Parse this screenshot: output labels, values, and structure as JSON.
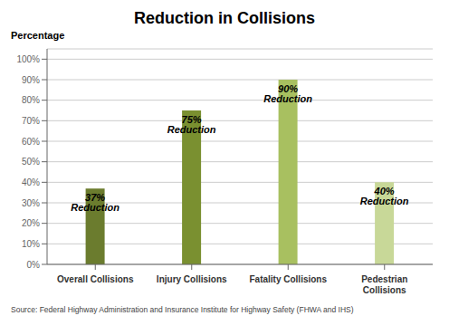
{
  "chart_data": {
    "type": "bar",
    "title": "Reduction in Collisions",
    "ylabel": "Percentage",
    "categories": [
      "Overall Collisions",
      "Injury Collisions",
      "Fatality Collisions",
      "Pedestrian\nCollisions"
    ],
    "values": [
      37,
      75,
      90,
      40
    ],
    "value_labels": [
      "37% Reduction",
      "75% Reduction",
      "90% Reduction",
      "40% Reduction"
    ],
    "data_labels": true,
    "colors": [
      "#6b7c2e",
      "#7a9030",
      "#a8c060",
      "#c8d898"
    ],
    "ylim": [
      0,
      105
    ],
    "yticks": [
      {
        "value": 0,
        "label": "0%"
      },
      {
        "value": 10,
        "label": "10%"
      },
      {
        "value": 20,
        "label": "20%"
      },
      {
        "value": 30,
        "label": "30%"
      },
      {
        "value": 40,
        "label": "40%"
      },
      {
        "value": 50,
        "label": "50%"
      },
      {
        "value": 60,
        "label": "60%"
      },
      {
        "value": 70,
        "label": "70%"
      },
      {
        "value": 80,
        "label": "80%"
      },
      {
        "value": 90,
        "label": "90%"
      },
      {
        "value": 100,
        "label": "100%"
      }
    ],
    "grid": true,
    "annotations": [
      "Source: Federal Highway Administration and Insurance Institute for Highway Safety (FHWA and IHS)"
    ]
  }
}
